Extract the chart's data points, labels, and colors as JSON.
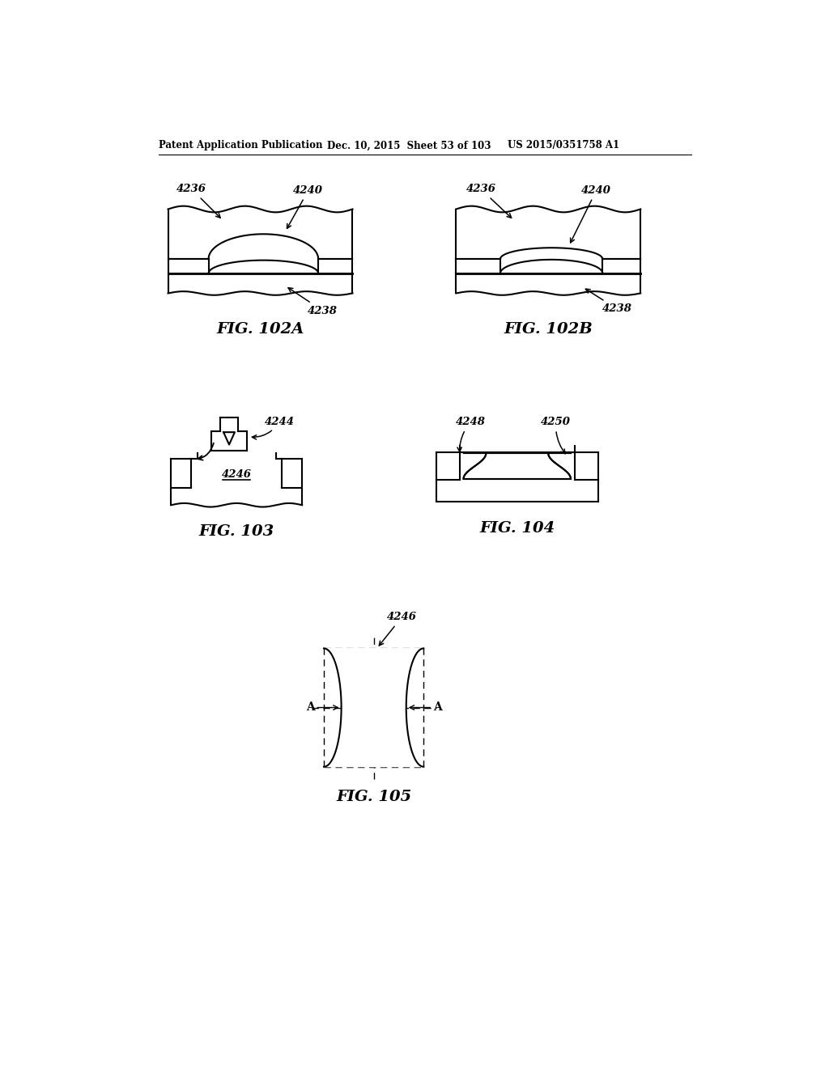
{
  "header_left": "Patent Application Publication",
  "header_mid": "Dec. 10, 2015  Sheet 53 of 103",
  "header_right": "US 2015/0351758 A1",
  "fig102A_label": "FIG. 102A",
  "fig102B_label": "FIG. 102B",
  "fig103_label": "FIG. 103",
  "fig104_label": "FIG. 104",
  "fig105_label": "FIG. 105",
  "bg_color": "#ffffff"
}
